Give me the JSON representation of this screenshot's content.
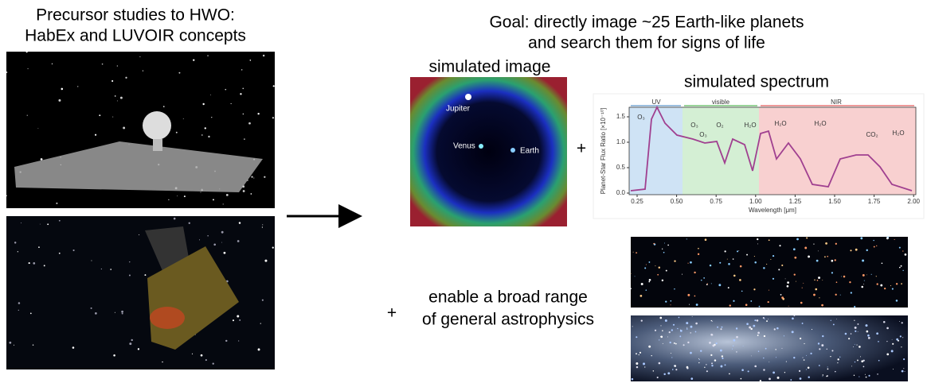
{
  "left": {
    "title_lines": [
      "Precursor studies to HWO:",
      "HabEx and LUVOIR concepts"
    ]
  },
  "goal": {
    "lines": [
      "Goal: directly image ~25 Earth-like planets",
      "and search them for signs of life"
    ]
  },
  "simulated_image": {
    "label": "simulated image",
    "planets": [
      "Jupiter",
      "Venus",
      "Earth"
    ]
  },
  "simulated_spectrum": {
    "label": "simulated spectrum",
    "bands": [
      "UV",
      "visible",
      "NIR"
    ],
    "molecules": [
      "O₃",
      "O₃",
      "O₃",
      "O₂",
      "H₂O",
      "H₂O",
      "H₂O",
      "CO₂",
      "H₂O"
    ],
    "xticks": [
      "0.25",
      "0.50",
      "0.75",
      "1.00",
      "1.25",
      "1.50",
      "1.75",
      "2.00"
    ],
    "yticks": [
      "0.0",
      "0.5",
      "1.0",
      "1.5"
    ],
    "x_label": "Wavelength [μm]",
    "y_label": "Planet-Star Flux Ratio [×10⁻¹⁰]"
  },
  "plus_signs": [
    "+",
    "+"
  ],
  "astrophysics": {
    "lines": [
      "enable a broad range",
      "of general astrophysics"
    ]
  }
}
